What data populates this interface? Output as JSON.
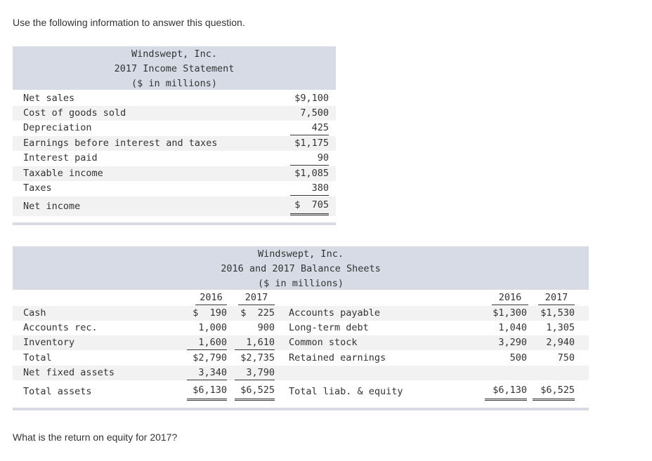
{
  "intro": "Use the following information to answer this question.",
  "question": "What is the return on equity for 2017?",
  "income_statement": {
    "company": "Windswept, Inc.",
    "title": "2017 Income Statement",
    "units": "($ in millions)",
    "rows": [
      {
        "label": "Net sales",
        "value": "$9,100"
      },
      {
        "label": "Cost of goods sold",
        "value": "7,500"
      },
      {
        "label": "Depreciation",
        "value": "425"
      },
      {
        "label": "Earnings before interest and taxes",
        "value": "$1,175"
      },
      {
        "label": "Interest paid",
        "value": "90"
      },
      {
        "label": "Taxable income",
        "value": "$1,085"
      },
      {
        "label": "Taxes",
        "value": "380"
      },
      {
        "label": "Net income",
        "value": "$  705"
      }
    ]
  },
  "balance_sheet": {
    "company": "Windswept, Inc.",
    "title": "2016 and 2017 Balance Sheets",
    "units": "($ in millions)",
    "col_2016": "2016",
    "col_2017": "2017",
    "assets": [
      {
        "label": "Cash",
        "v2016": "$  190",
        "v2017": "$  225"
      },
      {
        "label": "Accounts rec.",
        "v2016": "1,000",
        "v2017": "900"
      },
      {
        "label": "Inventory",
        "v2016": "1,600",
        "v2017": "1,610"
      },
      {
        "label": "Total",
        "v2016": "$2,790",
        "v2017": "$2,735"
      },
      {
        "label": "Net fixed assets",
        "v2016": "3,340",
        "v2017": "3,790"
      },
      {
        "label": "Total assets",
        "v2016": "$6,130",
        "v2017": "$6,525"
      }
    ],
    "liabilities": [
      {
        "label": "Accounts payable",
        "v2016": "$1,300",
        "v2017": "$1,530"
      },
      {
        "label": "Long-term debt",
        "v2016": "1,040",
        "v2017": "1,305"
      },
      {
        "label": "Common stock",
        "v2016": "3,290",
        "v2017": "2,940"
      },
      {
        "label": "Retained earnings",
        "v2016": "500",
        "v2017": "750"
      },
      {
        "label": "Total liab. & equity",
        "v2016": "$6,130",
        "v2017": "$6,525"
      }
    ]
  }
}
